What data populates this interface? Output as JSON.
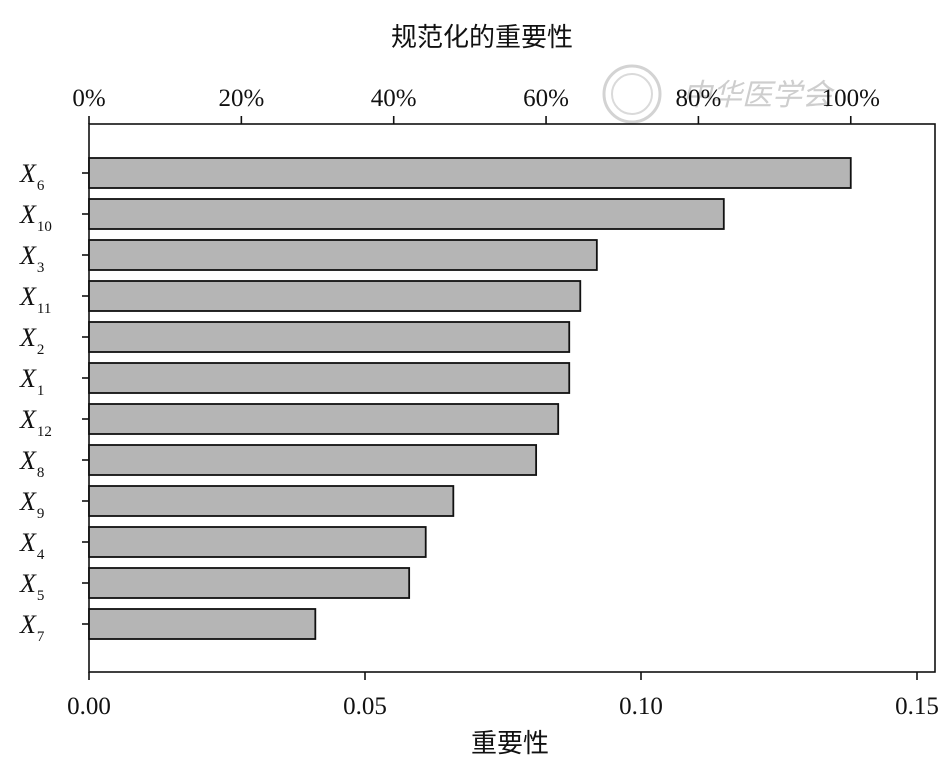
{
  "chart_data": {
    "type": "bar",
    "orientation": "horizontal",
    "title": "规范化的重要性",
    "xlabel": "重要性",
    "ylabel": "",
    "xlim": [
      0,
      0.15
    ],
    "x_ticks": [
      "0.00",
      "0.05",
      "0.10",
      "0.15"
    ],
    "x_tick_values": [
      0,
      0.05,
      0.1,
      0.15
    ],
    "top_axis": {
      "label": "规范化的重要性",
      "ticks": [
        "0%",
        "20%",
        "40%",
        "60%",
        "80%",
        "100%"
      ],
      "tick_values": [
        0,
        20,
        40,
        60,
        80,
        100
      ],
      "max_percent_equals_value": 0.138
    },
    "categories": [
      {
        "base": "X",
        "sub": "6"
      },
      {
        "base": "X",
        "sub": "10"
      },
      {
        "base": "X",
        "sub": "3"
      },
      {
        "base": "X",
        "sub": "11"
      },
      {
        "base": "X",
        "sub": "2"
      },
      {
        "base": "X",
        "sub": "1"
      },
      {
        "base": "X",
        "sub": "12"
      },
      {
        "base": "X",
        "sub": "8"
      },
      {
        "base": "X",
        "sub": "9"
      },
      {
        "base": "X",
        "sub": "4"
      },
      {
        "base": "X",
        "sub": "5"
      },
      {
        "base": "X",
        "sub": "7"
      }
    ],
    "values": [
      0.138,
      0.115,
      0.092,
      0.089,
      0.087,
      0.087,
      0.085,
      0.081,
      0.066,
      0.061,
      0.058,
      0.041
    ],
    "grid": false,
    "colors": {
      "bar_fill": "#b5b5b5",
      "bar_stroke": "#111111"
    },
    "watermark_text": "中华医学会"
  }
}
